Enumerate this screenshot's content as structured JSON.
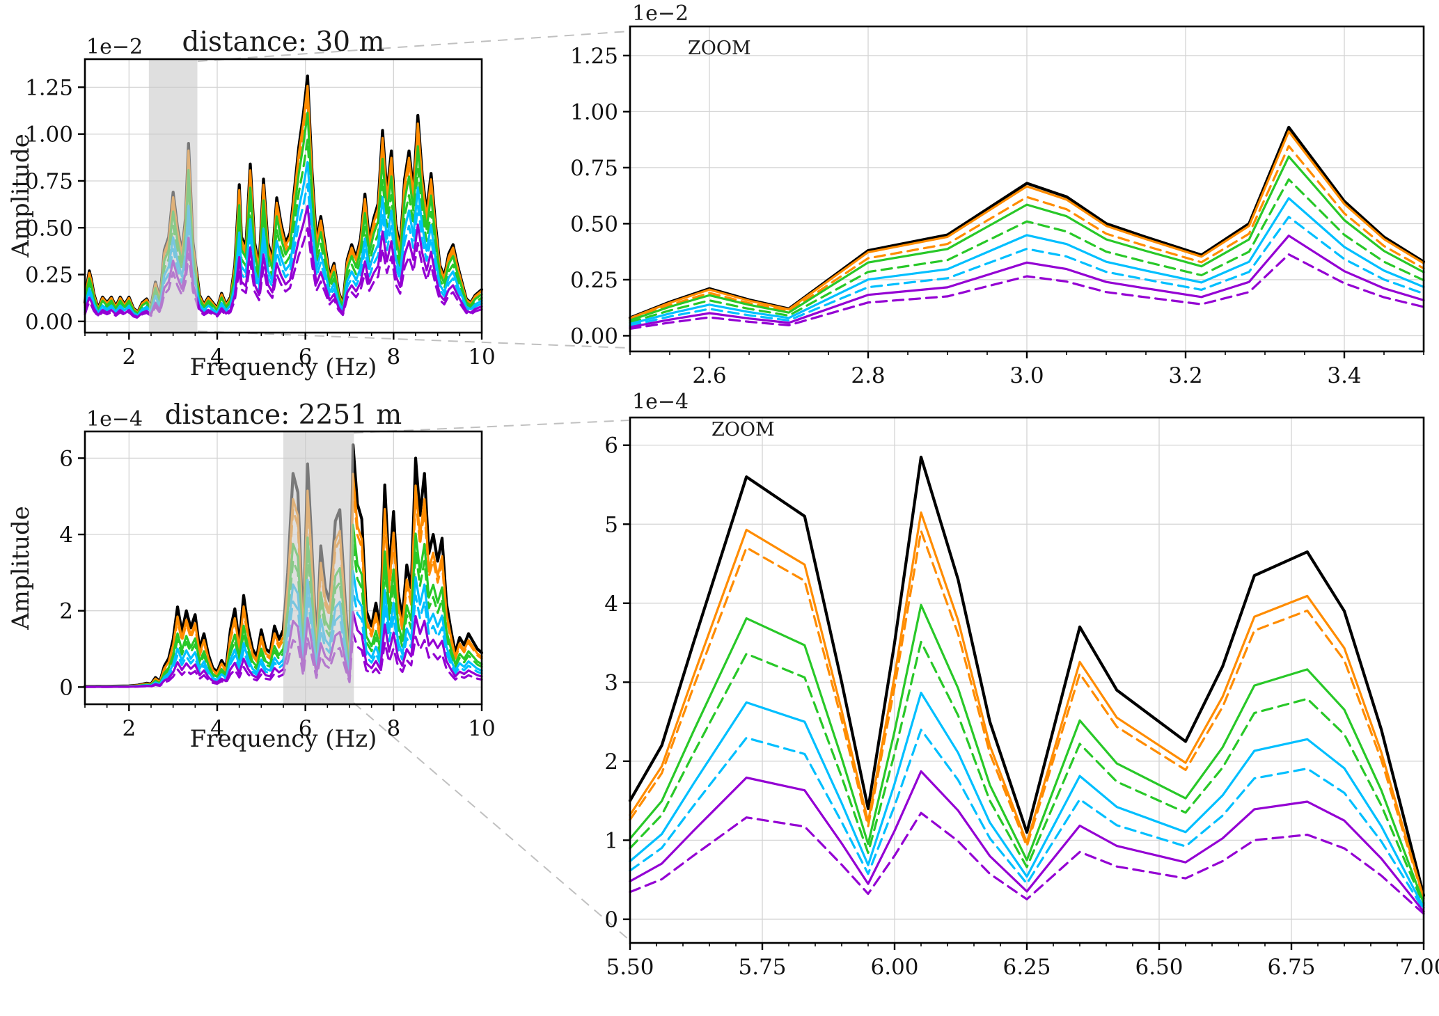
{
  "figure": {
    "background": "#ffffff",
    "band_color": "rgba(202,202,202,0.6)",
    "grid_color": "#d4d4d4"
  },
  "chart_data": [
    {
      "id": "spectrum-30m",
      "type": "line",
      "title": "distance: 30 m",
      "xlabel": "Frequency (Hz)",
      "ylabel": "Amplitude",
      "offset_label": "1e−2",
      "xlim": [
        1,
        10
      ],
      "ylim": [
        -0.06,
        1.4
      ],
      "xticks": [
        2,
        4,
        6,
        8,
        10
      ],
      "xtick_labels": [
        "2",
        "4",
        "6",
        "8",
        "10"
      ],
      "yticks": [
        0,
        0.25,
        0.5,
        0.75,
        1.0,
        1.25
      ],
      "ytick_labels": [
        "0.00",
        "0.25",
        "0.50",
        "0.75",
        "1.00",
        "1.25"
      ],
      "grid": true,
      "legend": null,
      "shaded_band": [
        2.45,
        3.55
      ],
      "x": [
        1.0,
        1.05,
        1.1,
        1.15,
        1.2,
        1.3,
        1.4,
        1.5,
        1.6,
        1.7,
        1.8,
        1.9,
        2.0,
        2.1,
        2.2,
        2.3,
        2.4,
        2.5,
        2.55,
        2.6,
        2.7,
        2.8,
        2.9,
        3.0,
        3.1,
        3.2,
        3.28,
        3.35,
        3.45,
        3.5,
        3.6,
        3.7,
        3.8,
        3.9,
        4.0,
        4.1,
        4.2,
        4.3,
        4.4,
        4.5,
        4.55,
        4.65,
        4.75,
        4.85,
        4.95,
        5.05,
        5.15,
        5.25,
        5.35,
        5.45,
        5.55,
        5.65,
        5.75,
        5.85,
        5.95,
        6.05,
        6.15,
        6.25,
        6.35,
        6.45,
        6.55,
        6.65,
        6.75,
        6.85,
        6.95,
        7.05,
        7.15,
        7.25,
        7.35,
        7.45,
        7.55,
        7.65,
        7.75,
        7.85,
        7.95,
        8.05,
        8.15,
        8.25,
        8.35,
        8.45,
        8.55,
        8.65,
        8.75,
        8.85,
        8.95,
        9.05,
        9.15,
        9.25,
        9.35,
        9.45,
        9.55,
        9.65,
        9.75,
        9.85,
        10.0
      ],
      "base_values": [
        0.1,
        0.2,
        0.27,
        0.22,
        0.15,
        0.07,
        0.13,
        0.1,
        0.13,
        0.08,
        0.13,
        0.09,
        0.13,
        0.07,
        0.05,
        0.1,
        0.12,
        0.08,
        0.15,
        0.21,
        0.12,
        0.38,
        0.45,
        0.69,
        0.5,
        0.37,
        0.55,
        0.95,
        0.42,
        0.33,
        0.14,
        0.09,
        0.13,
        0.1,
        0.07,
        0.15,
        0.09,
        0.13,
        0.3,
        0.73,
        0.45,
        0.4,
        0.84,
        0.42,
        0.3,
        0.76,
        0.42,
        0.33,
        0.66,
        0.52,
        0.42,
        0.47,
        0.7,
        0.93,
        1.1,
        1.31,
        0.8,
        0.43,
        0.56,
        0.4,
        0.24,
        0.31,
        0.16,
        0.09,
        0.33,
        0.41,
        0.34,
        0.44,
        0.68,
        0.43,
        0.55,
        0.63,
        1.02,
        0.68,
        0.91,
        0.52,
        0.39,
        0.76,
        0.91,
        0.7,
        1.1,
        0.78,
        0.58,
        0.79,
        0.52,
        0.3,
        0.24,
        0.36,
        0.41,
        0.3,
        0.21,
        0.12,
        0.1,
        0.14,
        0.17
      ],
      "series": [
        {
          "name": "black",
          "color": "#000000",
          "style": "solid",
          "scale": 1.0,
          "width": 4.2
        },
        {
          "name": "orange",
          "color": "#ff8c00",
          "style": "solid",
          "scale": 0.96,
          "width": 3.2
        },
        {
          "name": "orange-dashed",
          "color": "#ff8c00",
          "style": "dashed",
          "scale": 0.9,
          "width": 3.2
        },
        {
          "name": "green",
          "color": "#28c828",
          "style": "solid",
          "scale": 0.85,
          "width": 3.2
        },
        {
          "name": "green-dashed",
          "color": "#28c828",
          "style": "dashed",
          "scale": 0.74,
          "width": 3.2
        },
        {
          "name": "cyan",
          "color": "#00bfff",
          "style": "solid",
          "scale": 0.65,
          "width": 3.2
        },
        {
          "name": "cyan-dashed",
          "color": "#00bfff",
          "style": "dashed",
          "scale": 0.56,
          "width": 3.2
        },
        {
          "name": "purple",
          "color": "#9400d3",
          "style": "solid",
          "scale": 0.47,
          "width": 3.2
        },
        {
          "name": "purple-dashed",
          "color": "#9400d3",
          "style": "dashed",
          "scale": 0.38,
          "width": 3.2
        }
      ]
    },
    {
      "id": "zoom-30m",
      "type": "line",
      "inset_label": "ZOOM",
      "offset_label": "1e−2",
      "xlim": [
        2.5,
        3.5
      ],
      "ylim": [
        -0.07,
        1.38
      ],
      "xticks": [
        2.6,
        2.8,
        3.0,
        3.2,
        3.4
      ],
      "xtick_labels": [
        "2.6",
        "2.8",
        "3.0",
        "3.2",
        "3.4"
      ],
      "yticks": [
        0,
        0.25,
        0.5,
        0.75,
        1.0,
        1.25
      ],
      "ytick_labels": [
        "0.00",
        "0.25",
        "0.50",
        "0.75",
        "1.00",
        "1.25"
      ],
      "grid": true,
      "legend": null,
      "x": [
        2.5,
        2.55,
        2.6,
        2.65,
        2.7,
        2.8,
        2.9,
        3.0,
        3.05,
        3.1,
        3.15,
        3.22,
        3.28,
        3.33,
        3.4,
        3.45,
        3.5
      ],
      "base_values": [
        0.08,
        0.15,
        0.21,
        0.16,
        0.12,
        0.38,
        0.45,
        0.68,
        0.62,
        0.5,
        0.44,
        0.36,
        0.5,
        0.93,
        0.6,
        0.44,
        0.33
      ],
      "series": [
        {
          "name": "black",
          "color": "#000000",
          "style": "solid",
          "scale": 1.0,
          "width": 4.2
        },
        {
          "name": "orange",
          "color": "#ff8c00",
          "style": "solid",
          "scale": 0.98,
          "width": 3.2
        },
        {
          "name": "orange-dashed",
          "color": "#ff8c00",
          "style": "dashed",
          "scale": 0.91,
          "width": 3.2
        },
        {
          "name": "green",
          "color": "#28c828",
          "style": "solid",
          "scale": 0.86,
          "width": 3.2
        },
        {
          "name": "green-dashed",
          "color": "#28c828",
          "style": "dashed",
          "scale": 0.75,
          "width": 3.2
        },
        {
          "name": "cyan",
          "color": "#00bfff",
          "style": "solid",
          "scale": 0.66,
          "width": 3.2
        },
        {
          "name": "cyan-dashed",
          "color": "#00bfff",
          "style": "dashed",
          "scale": 0.57,
          "width": 3.2
        },
        {
          "name": "purple",
          "color": "#9400d3",
          "style": "solid",
          "scale": 0.48,
          "width": 3.2
        },
        {
          "name": "purple-dashed",
          "color": "#9400d3",
          "style": "dashed",
          "scale": 0.39,
          "width": 3.2
        }
      ]
    },
    {
      "id": "spectrum-2251m",
      "type": "line",
      "title": "distance: 2251 m",
      "xlabel": "Frequency (Hz)",
      "ylabel": "Amplitude",
      "offset_label": "1e−4",
      "xlim": [
        1,
        10
      ],
      "ylim": [
        -0.45,
        6.7
      ],
      "xticks": [
        2,
        4,
        6,
        8,
        10
      ],
      "xtick_labels": [
        "2",
        "4",
        "6",
        "8",
        "10"
      ],
      "yticks": [
        0,
        2,
        4,
        6
      ],
      "ytick_labels": [
        "0",
        "2",
        "4",
        "6"
      ],
      "grid": true,
      "legend": null,
      "shaded_band": [
        5.5,
        7.1
      ],
      "x": [
        1.0,
        1.5,
        2.0,
        2.2,
        2.4,
        2.5,
        2.6,
        2.7,
        2.8,
        2.9,
        3.0,
        3.1,
        3.2,
        3.3,
        3.4,
        3.5,
        3.6,
        3.7,
        3.8,
        3.9,
        4.0,
        4.1,
        4.2,
        4.3,
        4.4,
        4.5,
        4.6,
        4.7,
        4.8,
        4.9,
        5.0,
        5.1,
        5.2,
        5.3,
        5.4,
        5.5,
        5.6,
        5.72,
        5.83,
        5.95,
        6.05,
        6.12,
        6.25,
        6.35,
        6.45,
        6.55,
        6.68,
        6.78,
        6.9,
        7.0,
        7.08,
        7.18,
        7.28,
        7.38,
        7.5,
        7.6,
        7.7,
        7.8,
        7.9,
        8.0,
        8.1,
        8.2,
        8.3,
        8.4,
        8.5,
        8.6,
        8.7,
        8.8,
        8.9,
        9.0,
        9.1,
        9.2,
        9.3,
        9.4,
        9.5,
        9.6,
        9.7,
        9.8,
        9.9,
        10.0
      ],
      "base_values": [
        0.02,
        0.02,
        0.03,
        0.05,
        0.1,
        0.08,
        0.25,
        0.15,
        0.55,
        0.75,
        1.25,
        2.1,
        1.45,
        2.0,
        1.55,
        1.9,
        1.0,
        1.4,
        0.85,
        0.5,
        0.4,
        0.7,
        0.5,
        1.5,
        2.05,
        1.15,
        2.4,
        1.55,
        1.0,
        0.8,
        1.5,
        1.0,
        0.9,
        1.6,
        1.25,
        1.5,
        3.0,
        5.6,
        5.1,
        1.4,
        5.85,
        4.3,
        1.1,
        3.7,
        2.6,
        2.25,
        4.35,
        4.65,
        2.3,
        0.6,
        6.35,
        4.8,
        4.4,
        2.0,
        1.6,
        2.2,
        1.5,
        5.3,
        3.0,
        4.6,
        2.5,
        1.8,
        3.2,
        2.6,
        6.0,
        4.5,
        5.6,
        3.5,
        4.0,
        3.3,
        3.9,
        2.2,
        1.5,
        0.9,
        1.3,
        1.1,
        1.4,
        1.2,
        1.0,
        0.9
      ],
      "series": [
        {
          "name": "black",
          "color": "#000000",
          "style": "solid",
          "scale": 1.0,
          "width": 4.2
        },
        {
          "name": "orange",
          "color": "#ff8c00",
          "style": "solid",
          "scale": 0.88,
          "width": 3.2
        },
        {
          "name": "orange-dashed",
          "color": "#ff8c00",
          "style": "dashed",
          "scale": 0.83,
          "width": 3.2
        },
        {
          "name": "green",
          "color": "#28c828",
          "style": "solid",
          "scale": 0.67,
          "width": 3.2
        },
        {
          "name": "green-dashed",
          "color": "#28c828",
          "style": "dashed",
          "scale": 0.59,
          "width": 3.2
        },
        {
          "name": "cyan",
          "color": "#00bfff",
          "style": "solid",
          "scale": 0.48,
          "width": 3.2
        },
        {
          "name": "cyan-dashed",
          "color": "#00bfff",
          "style": "dashed",
          "scale": 0.4,
          "width": 3.2
        },
        {
          "name": "purple",
          "color": "#9400d3",
          "style": "solid",
          "scale": 0.31,
          "width": 3.2
        },
        {
          "name": "purple-dashed",
          "color": "#9400d3",
          "style": "dashed",
          "scale": 0.22,
          "width": 3.2
        }
      ]
    },
    {
      "id": "zoom-2251m",
      "type": "line",
      "inset_label": "ZOOM",
      "offset_label": "1e−4",
      "xlim": [
        5.5,
        7.0
      ],
      "ylim": [
        -0.3,
        6.35
      ],
      "xticks": [
        5.5,
        5.75,
        6.0,
        6.25,
        6.5,
        6.75,
        7.0
      ],
      "xtick_labels": [
        "5.50",
        "5.75",
        "6.00",
        "6.25",
        "6.50",
        "6.75",
        "7.00"
      ],
      "yticks": [
        0,
        1,
        2,
        3,
        4,
        5,
        6
      ],
      "ytick_labels": [
        "0",
        "1",
        "2",
        "3",
        "4",
        "5",
        "6"
      ],
      "grid": true,
      "legend": null,
      "x": [
        5.5,
        5.56,
        5.62,
        5.72,
        5.83,
        5.9,
        5.95,
        6.0,
        6.05,
        6.12,
        6.18,
        6.25,
        6.3,
        6.35,
        6.42,
        6.48,
        6.55,
        6.62,
        6.68,
        6.78,
        6.85,
        6.92,
        7.0
      ],
      "base_values": [
        1.5,
        2.2,
        3.5,
        5.6,
        5.1,
        3.0,
        1.4,
        3.5,
        5.85,
        4.3,
        2.5,
        1.1,
        2.4,
        3.7,
        2.9,
        2.6,
        2.25,
        3.2,
        4.35,
        4.65,
        3.9,
        2.4,
        0.3
      ],
      "series": [
        {
          "name": "black",
          "color": "#000000",
          "style": "solid",
          "scale": 1.0,
          "width": 4.2
        },
        {
          "name": "orange",
          "color": "#ff8c00",
          "style": "solid",
          "scale": 0.88,
          "width": 3.2
        },
        {
          "name": "orange-dashed",
          "color": "#ff8c00",
          "style": "dashed",
          "scale": 0.84,
          "width": 3.2
        },
        {
          "name": "green",
          "color": "#28c828",
          "style": "solid",
          "scale": 0.68,
          "width": 3.2
        },
        {
          "name": "green-dashed",
          "color": "#28c828",
          "style": "dashed",
          "scale": 0.6,
          "width": 3.2
        },
        {
          "name": "cyan",
          "color": "#00bfff",
          "style": "solid",
          "scale": 0.49,
          "width": 3.2
        },
        {
          "name": "cyan-dashed",
          "color": "#00bfff",
          "style": "dashed",
          "scale": 0.41,
          "width": 3.2
        },
        {
          "name": "purple",
          "color": "#9400d3",
          "style": "solid",
          "scale": 0.32,
          "width": 3.2
        },
        {
          "name": "purple-dashed",
          "color": "#9400d3",
          "style": "dashed",
          "scale": 0.23,
          "width": 3.2
        }
      ]
    }
  ]
}
